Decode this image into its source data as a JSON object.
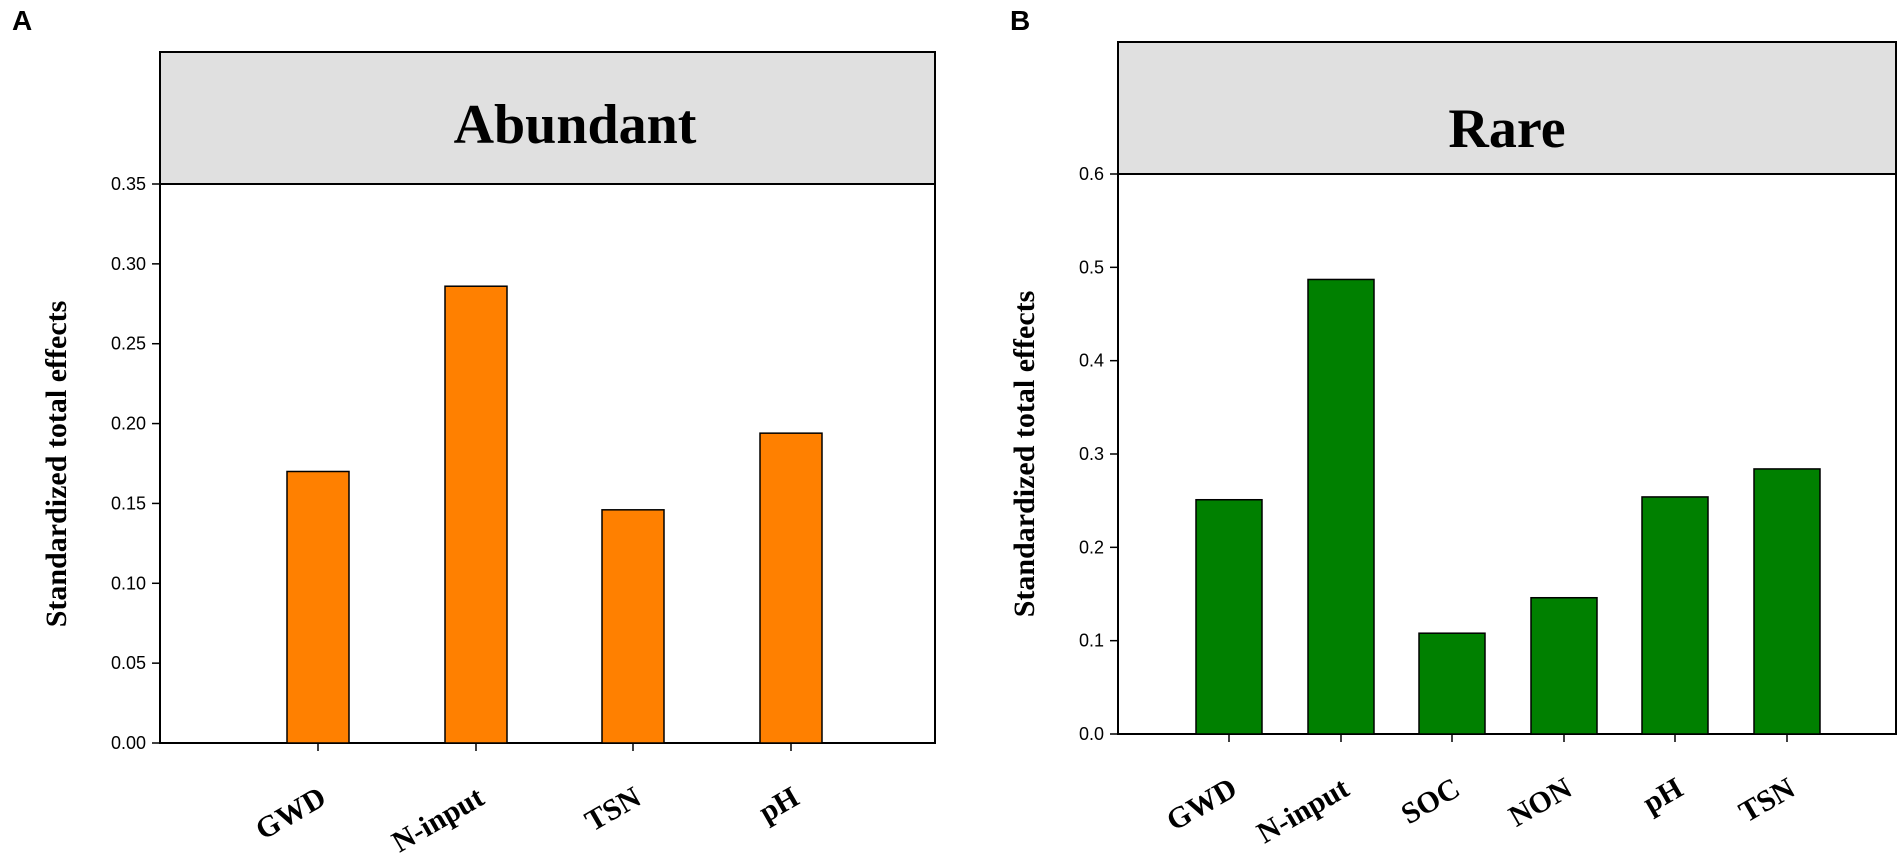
{
  "chart_data": [
    {
      "type": "bar",
      "panel": "A",
      "title": "Abundant",
      "xlabel": "",
      "ylabel": "Standardized total effects",
      "categories": [
        "GWD",
        "N-input",
        "TSN",
        "pH"
      ],
      "values": [
        0.17,
        0.286,
        0.146,
        0.194
      ],
      "ylim": [
        0,
        0.35
      ],
      "yticks": [
        "0.00",
        "0.05",
        "0.10",
        "0.15",
        "0.20",
        "0.25",
        "0.30",
        "0.35"
      ],
      "bar_color": "#FF8000",
      "grid": false
    },
    {
      "type": "bar",
      "panel": "B",
      "title": "Rare",
      "xlabel": "",
      "ylabel": "Standardized total effects",
      "categories": [
        "GWD",
        "N-input",
        "SOC",
        "NON",
        "pH",
        "TSN"
      ],
      "values": [
        0.251,
        0.487,
        0.108,
        0.146,
        0.254,
        0.284
      ],
      "ylim": [
        0,
        0.6
      ],
      "yticks": [
        "0.0",
        "0.1",
        "0.2",
        "0.3",
        "0.4",
        "0.5",
        "0.6"
      ],
      "bar_color": "#008000",
      "grid": false
    }
  ],
  "colors": {
    "title_band": "#E0E0E0",
    "axis": "#000000"
  }
}
